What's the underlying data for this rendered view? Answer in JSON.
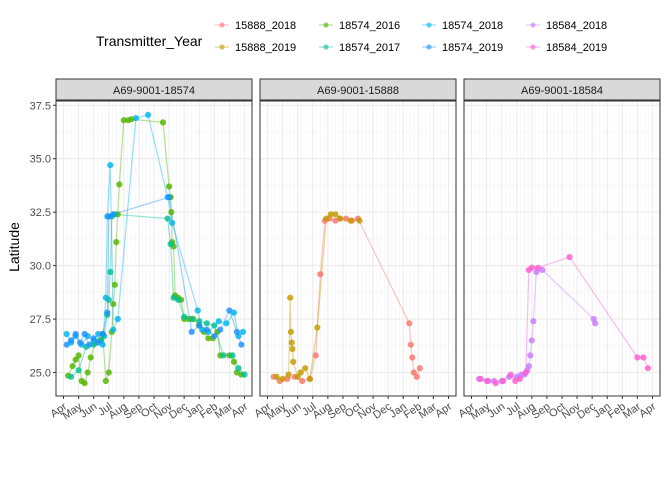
{
  "chart_data": {
    "type": "scatter",
    "title": "",
    "xlabel": "",
    "ylabel": "Latitude",
    "ylim": [
      23.9,
      37.7
    ],
    "y_ticks": [
      "25.0",
      "27.5",
      "30.0",
      "32.5",
      "35.0",
      "37.5"
    ],
    "x_ticks": [
      "Apr",
      "May",
      "Jun",
      "Jul",
      "Aug",
      "Sep",
      "Oct",
      "Nov",
      "Dec",
      "Jan",
      "Feb",
      "Mar",
      "Apr"
    ],
    "x_unit": "month index within tracking year (0 = start of Apr, 12 = start of following Apr)",
    "xlim": [
      -0.5,
      12.5
    ],
    "grid": true,
    "legend": {
      "title": "Transmitter_Year",
      "placement": "top",
      "items": [
        {
          "label": "15888_2018",
          "color": "#F8766D"
        },
        {
          "label": "15888_2019",
          "color": "#C49A00"
        },
        {
          "label": "18574_2016",
          "color": "#53B400"
        },
        {
          "label": "18574_2017",
          "color": "#00C094"
        },
        {
          "label": "18574_2018",
          "color": "#00B6EB"
        },
        {
          "label": "18574_2019",
          "color": "#1E90FF"
        },
        {
          "label": "18584_2018",
          "color": "#C77CFF"
        },
        {
          "label": "18584_2019",
          "color": "#FF5ECF"
        }
      ]
    },
    "panels": [
      {
        "strip": "A69-9001-18574",
        "series": [
          {
            "name": "18574_2016",
            "color": "#53B400",
            "points": [
              [
                0.3,
                24.85
              ],
              [
                0.6,
                25.3
              ],
              [
                0.8,
                25.6
              ],
              [
                1.0,
                25.8
              ],
              [
                1.2,
                24.6
              ],
              [
                1.4,
                24.5
              ],
              [
                1.6,
                25.0
              ],
              [
                1.8,
                25.7
              ],
              [
                2.1,
                26.4
              ],
              [
                2.4,
                26.5
              ],
              [
                2.6,
                26.8
              ],
              [
                2.8,
                24.6
              ],
              [
                3.0,
                25.0
              ],
              [
                3.2,
                26.9
              ],
              [
                3.3,
                28.2
              ],
              [
                3.4,
                29.1
              ],
              [
                3.5,
                31.1
              ],
              [
                3.6,
                32.4
              ],
              [
                3.7,
                33.8
              ],
              [
                4.0,
                36.8
              ],
              [
                4.3,
                36.8
              ],
              [
                4.5,
                36.85
              ],
              [
                6.6,
                36.7
              ],
              [
                7.0,
                33.7
              ],
              [
                7.1,
                33.2
              ],
              [
                7.15,
                32.5
              ],
              [
                7.2,
                31.1
              ],
              [
                7.3,
                30.9
              ],
              [
                7.4,
                28.6
              ],
              [
                7.6,
                28.5
              ],
              [
                7.8,
                28.4
              ],
              [
                8.0,
                27.5
              ],
              [
                8.3,
                27.5
              ],
              [
                8.6,
                27.5
              ],
              [
                9.0,
                27.2
              ],
              [
                9.3,
                26.9
              ],
              [
                9.6,
                26.6
              ],
              [
                9.9,
                26.6
              ],
              [
                10.2,
                26.9
              ],
              [
                10.4,
                25.8
              ],
              [
                11.0,
                25.8
              ],
              [
                11.3,
                25.5
              ],
              [
                11.5,
                25.0
              ],
              [
                11.8,
                24.9
              ]
            ]
          },
          {
            "name": "18574_2017",
            "color": "#00C094",
            "points": [
              [
                0.5,
                24.8
              ],
              [
                1.0,
                25.1
              ],
              [
                1.5,
                26.2
              ],
              [
                2.0,
                26.3
              ],
              [
                2.5,
                26.5
              ],
              [
                2.7,
                26.7
              ],
              [
                2.9,
                27.7
              ],
              [
                3.0,
                28.4
              ],
              [
                3.1,
                29.7
              ],
              [
                3.2,
                32.3
              ],
              [
                3.4,
                32.4
              ],
              [
                6.9,
                32.2
              ],
              [
                7.1,
                31.0
              ],
              [
                7.3,
                28.5
              ],
              [
                7.6,
                28.4
              ],
              [
                8.0,
                27.6
              ],
              [
                8.5,
                27.5
              ],
              [
                9.0,
                27.4
              ],
              [
                9.5,
                27.3
              ],
              [
                10.0,
                27.2
              ],
              [
                10.6,
                25.8
              ],
              [
                11.2,
                25.8
              ],
              [
                11.6,
                25.2
              ],
              [
                12.0,
                24.9
              ]
            ]
          },
          {
            "name": "18574_2018",
            "color": "#00B6EB",
            "points": [
              [
                0.2,
                26.8
              ],
              [
                0.5,
                26.4
              ],
              [
                0.8,
                26.7
              ],
              [
                1.2,
                26.3
              ],
              [
                1.6,
                26.7
              ],
              [
                2.0,
                26.5
              ],
              [
                2.3,
                26.8
              ],
              [
                2.6,
                26.3
              ],
              [
                2.8,
                28.5
              ],
              [
                2.9,
                32.3
              ],
              [
                3.1,
                34.7
              ],
              [
                3.3,
                27.0
              ],
              [
                3.6,
                27.5
              ],
              [
                4.8,
                36.9
              ],
              [
                5.6,
                37.05
              ],
              [
                6.9,
                33.2
              ],
              [
                7.2,
                32.0
              ],
              [
                8.9,
                27.9
              ],
              [
                9.2,
                27.0
              ],
              [
                9.6,
                26.9
              ],
              [
                10.3,
                27.4
              ],
              [
                10.8,
                27.3
              ],
              [
                11.3,
                27.8
              ],
              [
                11.6,
                26.7
              ],
              [
                11.9,
                26.9
              ]
            ]
          },
          {
            "name": "18574_2019",
            "color": "#1E90FF",
            "points": [
              [
                0.2,
                26.3
              ],
              [
                0.5,
                26.5
              ],
              [
                0.8,
                26.8
              ],
              [
                1.1,
                26.4
              ],
              [
                1.4,
                26.8
              ],
              [
                1.7,
                26.3
              ],
              [
                2.0,
                26.6
              ],
              [
                2.3,
                26.4
              ],
              [
                2.6,
                26.8
              ],
              [
                2.9,
                27.8
              ],
              [
                3.0,
                32.3
              ],
              [
                3.3,
                32.4
              ],
              [
                7.0,
                33.2
              ],
              [
                8.5,
                26.9
              ],
              [
                9.0,
                27.2
              ],
              [
                9.5,
                27.0
              ],
              [
                10.0,
                26.7
              ],
              [
                10.4,
                27.0
              ],
              [
                11.0,
                27.9
              ],
              [
                11.5,
                26.9
              ],
              [
                11.8,
                26.3
              ]
            ]
          }
        ]
      },
      {
        "strip": "A69-9001-15888",
        "series": [
          {
            "name": "15888_2018",
            "color": "#F8766D",
            "points": [
              [
                0.4,
                24.8
              ],
              [
                0.8,
                24.6
              ],
              [
                1.3,
                24.7
              ],
              [
                1.8,
                24.8
              ],
              [
                2.3,
                24.6
              ],
              [
                2.8,
                24.7
              ],
              [
                3.2,
                25.8
              ],
              [
                3.5,
                29.6
              ],
              [
                3.8,
                32.1
              ],
              [
                4.1,
                32.2
              ],
              [
                4.5,
                32.1
              ],
              [
                4.8,
                32.2
              ],
              [
                5.2,
                32.2
              ],
              [
                5.6,
                32.1
              ],
              [
                6.0,
                32.2
              ],
              [
                9.4,
                27.3
              ],
              [
                9.5,
                26.3
              ],
              [
                9.6,
                25.7
              ],
              [
                9.7,
                25.0
              ],
              [
                9.9,
                24.8
              ],
              [
                10.1,
                25.2
              ]
            ]
          },
          {
            "name": "15888_2019",
            "color": "#C49A00",
            "points": [
              [
                0.6,
                24.8
              ],
              [
                1.0,
                24.7
              ],
              [
                1.4,
                24.9
              ],
              [
                1.5,
                28.5
              ],
              [
                1.55,
                26.9
              ],
              [
                1.6,
                26.4
              ],
              [
                1.65,
                26.1
              ],
              [
                1.7,
                25.5
              ],
              [
                2.0,
                24.8
              ],
              [
                2.2,
                25.0
              ],
              [
                2.5,
                25.2
              ],
              [
                2.8,
                24.7
              ],
              [
                3.3,
                27.1
              ],
              [
                3.9,
                32.2
              ],
              [
                4.2,
                32.4
              ],
              [
                4.5,
                32.4
              ],
              [
                4.8,
                32.2
              ],
              [
                5.5,
                32.1
              ],
              [
                6.1,
                32.1
              ]
            ]
          }
        ]
      },
      {
        "strip": "A69-9001-18584",
        "series": [
          {
            "name": "18584_2018",
            "color": "#C77CFF",
            "points": [
              [
                0.5,
                24.7
              ],
              [
                1.0,
                24.6
              ],
              [
                1.5,
                24.6
              ],
              [
                2.0,
                24.6
              ],
              [
                2.5,
                24.8
              ],
              [
                3.0,
                24.8
              ],
              [
                3.3,
                24.9
              ],
              [
                3.5,
                24.9
              ],
              [
                3.7,
                25.1
              ],
              [
                3.8,
                25.3
              ],
              [
                3.9,
                25.8
              ],
              [
                4.0,
                26.5
              ],
              [
                4.1,
                27.4
              ],
              [
                4.3,
                29.7
              ],
              [
                4.7,
                29.8
              ],
              [
                8.1,
                27.5
              ],
              [
                8.2,
                27.3
              ]
            ]
          },
          {
            "name": "18584_2019",
            "color": "#FF5ECF",
            "points": [
              [
                0.6,
                24.7
              ],
              [
                1.1,
                24.6
              ],
              [
                1.6,
                24.5
              ],
              [
                2.1,
                24.6
              ],
              [
                2.6,
                24.9
              ],
              [
                2.9,
                24.6
              ],
              [
                3.2,
                24.7
              ],
              [
                3.6,
                25.0
              ],
              [
                3.8,
                29.8
              ],
              [
                4.0,
                29.9
              ],
              [
                4.4,
                29.9
              ],
              [
                6.5,
                30.4
              ],
              [
                11.0,
                25.7
              ],
              [
                11.4,
                25.7
              ],
              [
                11.7,
                25.2
              ]
            ]
          }
        ]
      }
    ]
  }
}
